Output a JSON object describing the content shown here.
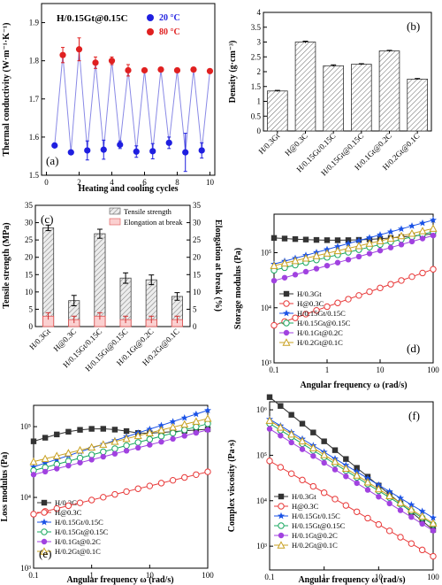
{
  "chart_data": [
    {
      "panel_label": "(a)",
      "type": "line",
      "annotation": "H/0.15Gt@0.15C",
      "xlabel": "Heating and cooling cycles",
      "ylabel": "Thermal conductivity (W·m⁻¹·K⁻¹)",
      "xlim": [
        -0.3,
        10.3
      ],
      "ylim": [
        1.5,
        1.95
      ],
      "xticks": [
        0,
        2,
        4,
        6,
        8,
        10
      ],
      "yticks": [
        1.5,
        1.6,
        1.7,
        1.8,
        1.9
      ],
      "series": [
        {
          "name": "20 °C",
          "color": "#1f1fe0",
          "x": [
            0.5,
            1.5,
            2.5,
            3.5,
            4.5,
            5.5,
            6.5,
            7.5,
            8.5,
            9.5
          ],
          "values": [
            1.578,
            1.56,
            1.565,
            1.567,
            1.58,
            1.562,
            1.563,
            1.585,
            1.56,
            1.565
          ],
          "errors": [
            0.005,
            0.005,
            0.025,
            0.025,
            0.01,
            0.015,
            0.02,
            0.015,
            0.05,
            0.02
          ]
        },
        {
          "name": "80 °C",
          "color": "#e02020",
          "x": [
            1,
            2,
            3,
            4,
            5,
            6,
            7,
            8,
            9,
            10
          ],
          "values": [
            1.815,
            1.83,
            1.795,
            1.8,
            1.775,
            1.775,
            1.777,
            1.775,
            1.777,
            1.773
          ],
          "errors": [
            0.02,
            0.03,
            0.015,
            0.01,
            0.015,
            0.005,
            0.005,
            0.005,
            0.005,
            0.005
          ]
        }
      ]
    },
    {
      "panel_label": "(b)",
      "type": "bar",
      "ylabel": "Density (g·cm⁻³)",
      "ylim": [
        0,
        4.0
      ],
      "yticks": [
        0.0,
        0.5,
        1.0,
        1.5,
        2.0,
        2.5,
        3.0,
        3.5,
        4.0
      ],
      "categories": [
        "H/0.3Gt",
        "H@0.3C",
        "H/0.15Gt/0.15C",
        "H/0.15Gt@0.15C",
        "H/0.1Gt@0.2C",
        "H/0.2Gt@0.1C"
      ],
      "values": [
        1.35,
        3.0,
        2.2,
        2.25,
        2.7,
        1.75
      ],
      "errors": [
        0.02,
        0.03,
        0.03,
        0.02,
        0.02,
        0.02
      ]
    },
    {
      "panel_label": "(c)",
      "type": "bar",
      "ylabel": "Tensile strength (MPa)",
      "y2label": "Elongation at break (%)",
      "ylim": [
        0,
        35
      ],
      "yticks": [
        0,
        5,
        10,
        15,
        20,
        25,
        30,
        35
      ],
      "categories": [
        "H/0.3Gt",
        "H@0.3C",
        "H/0.15Gt/0.15C",
        "H/0.15Gt@0.15C",
        "H/0.1Gt@0.2C",
        "H/0.2Gt@0.1C"
      ],
      "series": [
        {
          "name": "Tensile strength",
          "values": [
            28.5,
            7.5,
            26.8,
            14.0,
            13.5,
            8.7
          ],
          "errors": [
            0.8,
            1.5,
            1.3,
            1.5,
            1.4,
            1.1
          ]
        },
        {
          "name": "Elongation at break",
          "values": [
            3.0,
            2.0,
            3.0,
            2.0,
            2.0,
            2.0
          ],
          "errors": [
            1.0,
            1.0,
            1.0,
            1.0,
            1.0,
            1.0
          ]
        }
      ]
    },
    {
      "panel_label": "(d)",
      "type": "line",
      "xlabel": "Angular frequency ω (rad/s)",
      "ylabel": "Storage modulus (Pa)",
      "xscale": "log",
      "yscale": "log",
      "xlim": [
        0.1,
        100
      ],
      "ylim": [
        1000,
        500000
      ],
      "xticks": [
        "0.1",
        "1",
        "10",
        "100"
      ],
      "yticks": [
        "10³",
        "10⁴",
        "10⁵"
      ],
      "series": [
        {
          "name": "H/0.3Gt",
          "start": 185000,
          "end": 220000,
          "dip": 0.15
        },
        {
          "name": "H@0.3C",
          "start": 4800,
          "end": 50000
        },
        {
          "name": "H/0.15Gt/0.15C",
          "start": 62000,
          "end": 390000
        },
        {
          "name": "H/0.15Gt@0.15C",
          "start": 48000,
          "end": 240000
        },
        {
          "name": "H/0.1Gt@0.2C",
          "start": 31000,
          "end": 205000
        },
        {
          "name": "H/0.2Gt@0.1C",
          "start": 58000,
          "end": 275000
        }
      ]
    },
    {
      "panel_label": "(e)",
      "type": "line",
      "xlabel": "Angular frequency ω (rad/s)",
      "ylabel": "Loss modulus (Pa)",
      "xscale": "log",
      "yscale": "log",
      "xlim": [
        0.1,
        100
      ],
      "ylim": [
        1000,
        200000
      ],
      "xticks": [
        "0.1",
        "1",
        "10",
        "100"
      ],
      "yticks": [
        "10³",
        "10⁴",
        "10⁵"
      ],
      "series": [
        {
          "name": "H/0.3Gt",
          "start": 62000,
          "end": 92000,
          "peak": 90000
        },
        {
          "name": "H@0.3C",
          "start": 5800,
          "end": 23000
        },
        {
          "name": "H/0.15Gt/0.15C",
          "start": 27000,
          "end": 170000
        },
        {
          "name": "H/0.15Gt@0.15C",
          "start": 24000,
          "end": 110000
        },
        {
          "name": "H/0.1Gt@0.2C",
          "start": 21000,
          "end": 90000
        },
        {
          "name": "H/0.2Gt@0.1C",
          "start": 32000,
          "end": 130000
        }
      ]
    },
    {
      "panel_label": "(f)",
      "type": "line",
      "xlabel": "Angular frequency ω (rad/s)",
      "ylabel": "Complex viscosity (Pa·s)",
      "xscale": "log",
      "yscale": "log",
      "xlim": [
        0.1,
        100
      ],
      "ylim": [
        300,
        1500000
      ],
      "xticks": [
        "0.1",
        "1",
        "10",
        "100"
      ],
      "yticks": [
        "10³",
        "10⁴",
        "10⁵",
        "10⁶"
      ],
      "series": [
        {
          "name": "H/0.3Gt",
          "start": 1900000,
          "end": 2300
        },
        {
          "name": "H@0.3C",
          "start": 75000,
          "end": 600
        },
        {
          "name": "H/0.15Gt/0.15C",
          "start": 620000,
          "end": 4200
        },
        {
          "name": "H/0.15Gt@0.15C",
          "start": 500000,
          "end": 3000
        },
        {
          "name": "H/0.1Gt@0.2C",
          "start": 380000,
          "end": 2200
        },
        {
          "name": "H/0.2Gt@0.1C",
          "start": 580000,
          "end": 3200
        }
      ]
    }
  ],
  "styles": {
    "series_colors": [
      "#333333",
      "#e83a3a",
      "#1a52e6",
      "#1aa860",
      "#a142e0",
      "#c8a020"
    ],
    "series_markers": [
      "square",
      "circle-open",
      "star",
      "circle-open",
      "circle",
      "triangle-open"
    ],
    "bar_hatch": "#666666",
    "elongation_color": "#f06a6a"
  }
}
